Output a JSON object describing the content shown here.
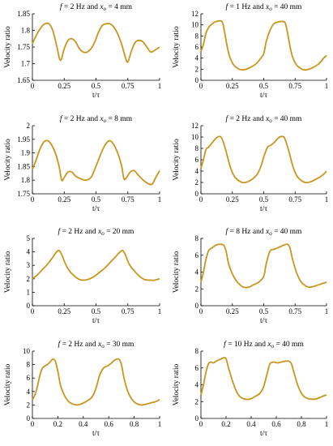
{
  "colors": {
    "line": "#C8961E",
    "axis": "#000000",
    "background": "#ffffff"
  },
  "chart_data": [
    {
      "type": "line",
      "title_parts": {
        "f_value": "2 Hz",
        "x_value": "4 mm"
      },
      "xlabel": "t/τ",
      "ylabel": "Velocity ratio",
      "xlim": [
        0,
        1
      ],
      "ylim": [
        1.65,
        1.85
      ],
      "xticks": [
        "0",
        "0.25",
        "0.5",
        "0.75",
        "1"
      ],
      "yticks": [
        "1.65",
        "1.7",
        "1.75",
        "1.8",
        "1.85"
      ],
      "x": [
        0,
        0.03,
        0.07,
        0.1,
        0.13,
        0.16,
        0.19,
        0.22,
        0.25,
        0.28,
        0.31,
        0.34,
        0.37,
        0.4,
        0.43,
        0.46,
        0.49,
        0.52,
        0.55,
        0.58,
        0.61,
        0.64,
        0.67,
        0.7,
        0.73,
        0.75,
        0.78,
        0.81,
        0.84,
        0.87,
        0.9,
        0.93,
        0.96,
        1.0
      ],
      "y": [
        1.76,
        1.785,
        1.81,
        1.82,
        1.82,
        1.8,
        1.755,
        1.71,
        1.745,
        1.77,
        1.775,
        1.765,
        1.745,
        1.735,
        1.735,
        1.745,
        1.765,
        1.795,
        1.815,
        1.82,
        1.82,
        1.81,
        1.79,
        1.76,
        1.72,
        1.705,
        1.74,
        1.765,
        1.77,
        1.765,
        1.75,
        1.735,
        1.74,
        1.75
      ]
    },
    {
      "type": "line",
      "title_parts": {
        "f_value": "1 Hz",
        "x_value": "40 mm"
      },
      "xlabel": "t/τ",
      "ylabel": "Velocity ratio",
      "xlim": [
        0,
        1
      ],
      "ylim": [
        0,
        12
      ],
      "xticks": [
        "0",
        "0.25",
        "0.5",
        "0.75",
        "1"
      ],
      "yticks": [
        "0",
        "2",
        "4",
        "6",
        "8",
        "10",
        "12"
      ],
      "x": [
        0,
        0.02,
        0.04,
        0.06,
        0.08,
        0.11,
        0.14,
        0.17,
        0.19,
        0.21,
        0.23,
        0.26,
        0.29,
        0.32,
        0.36,
        0.4,
        0.44,
        0.47,
        0.5,
        0.52,
        0.55,
        0.58,
        0.61,
        0.64,
        0.67,
        0.69,
        0.71,
        0.73,
        0.76,
        0.79,
        0.82,
        0.86,
        0.9,
        0.94,
        0.97,
        1.0
      ],
      "y": [
        5.2,
        6.5,
        8.5,
        9.5,
        10,
        10.5,
        10.7,
        10.5,
        8.5,
        6,
        4.2,
        2.8,
        2.2,
        1.9,
        2.0,
        2.4,
        3.0,
        3.8,
        4.8,
        7.0,
        9.0,
        10.2,
        10.5,
        10.6,
        10.4,
        8.5,
        6,
        4.2,
        2.8,
        2.2,
        1.9,
        2.0,
        2.4,
        3.0,
        3.8,
        4.5
      ]
    },
    {
      "type": "line",
      "title_parts": {
        "f_value": "2 Hz",
        "x_value": "8 mm"
      },
      "xlabel": "t/τ",
      "ylabel": "Velocity ratio",
      "xlim": [
        0,
        1
      ],
      "ylim": [
        1.75,
        2.0
      ],
      "xticks": [
        "0",
        "0.25",
        "0.5",
        "0.75",
        "1"
      ],
      "yticks": [
        "1.75",
        "1.8",
        "1.85",
        "1.9",
        "1.95",
        "2"
      ],
      "x": [
        0,
        0.03,
        0.06,
        0.09,
        0.12,
        0.15,
        0.18,
        0.21,
        0.23,
        0.25,
        0.28,
        0.31,
        0.34,
        0.38,
        0.42,
        0.46,
        0.49,
        0.52,
        0.55,
        0.58,
        0.61,
        0.64,
        0.67,
        0.7,
        0.72,
        0.74,
        0.77,
        0.8,
        0.83,
        0.86,
        0.9,
        0.94,
        0.97,
        1.0
      ],
      "y": [
        1.84,
        1.875,
        1.915,
        1.94,
        1.945,
        1.93,
        1.9,
        1.85,
        1.8,
        1.81,
        1.83,
        1.83,
        1.815,
        1.805,
        1.8,
        1.81,
        1.84,
        1.875,
        1.91,
        1.935,
        1.945,
        1.93,
        1.9,
        1.855,
        1.805,
        1.81,
        1.83,
        1.835,
        1.82,
        1.805,
        1.79,
        1.785,
        1.81,
        1.835
      ]
    },
    {
      "type": "line",
      "title_parts": {
        "f_value": "2 Hz",
        "x_value": "40 mm"
      },
      "xlabel": "t/τ",
      "ylabel": "Velocity ratio",
      "xlim": [
        0,
        1
      ],
      "ylim": [
        0,
        12
      ],
      "xticks": [
        "0",
        "0.25",
        "0.5",
        "0.75",
        "1"
      ],
      "yticks": [
        "0",
        "2",
        "4",
        "6",
        "8",
        "10",
        "12"
      ],
      "x": [
        0,
        0.02,
        0.04,
        0.06,
        0.09,
        0.12,
        0.15,
        0.17,
        0.2,
        0.23,
        0.26,
        0.29,
        0.33,
        0.37,
        0.41,
        0.45,
        0.48,
        0.5,
        0.53,
        0.56,
        0.59,
        0.62,
        0.65,
        0.67,
        0.7,
        0.73,
        0.76,
        0.79,
        0.83,
        0.87,
        0.91,
        0.95,
        0.98,
        1.0
      ],
      "y": [
        4.5,
        6.0,
        7.8,
        8.2,
        9.0,
        9.8,
        10.1,
        9.6,
        7.5,
        5.0,
        3.3,
        2.5,
        2.0,
        2.1,
        2.6,
        3.5,
        5.0,
        6.5,
        8.2,
        8.6,
        9.2,
        9.9,
        10.1,
        9.6,
        7.5,
        5.0,
        3.3,
        2.5,
        2.0,
        2.1,
        2.5,
        3.0,
        3.5,
        4.0
      ]
    },
    {
      "type": "line",
      "title_parts": {
        "f_value": "2 Hz",
        "x_value": "20 mm"
      },
      "xlabel": "t/τ",
      "ylabel": "Velocity ratio",
      "xlim": [
        0,
        1
      ],
      "ylim": [
        0,
        5
      ],
      "xticks": [
        "0",
        "0.25",
        "0.5",
        "0.75",
        "1"
      ],
      "yticks": [
        "0",
        "1",
        "2",
        "3",
        "4",
        "5"
      ],
      "x": [
        0,
        0.04,
        0.08,
        0.12,
        0.16,
        0.19,
        0.21,
        0.23,
        0.26,
        0.29,
        0.33,
        0.37,
        0.41,
        0.45,
        0.49,
        0.53,
        0.57,
        0.61,
        0.65,
        0.69,
        0.71,
        0.73,
        0.76,
        0.8,
        0.84,
        0.88,
        0.92,
        0.96,
        1.0
      ],
      "y": [
        2.0,
        2.3,
        2.7,
        3.1,
        3.6,
        4.0,
        4.1,
        3.8,
        3.1,
        2.6,
        2.2,
        1.95,
        1.9,
        2.0,
        2.2,
        2.5,
        2.8,
        3.2,
        3.6,
        4.0,
        4.1,
        3.8,
        3.1,
        2.6,
        2.2,
        1.95,
        1.9,
        1.9,
        2.0
      ]
    },
    {
      "type": "line",
      "title_parts": {
        "f_value": "8 Hz",
        "x_value": "40 mm"
      },
      "xlabel": "t/τ",
      "ylabel": "Velocity ratio",
      "xlim": [
        0,
        1
      ],
      "ylim": [
        0,
        8
      ],
      "xticks": [
        "0",
        "0.25",
        "0.5",
        "0.75",
        "1"
      ],
      "yticks": [
        "0",
        "2",
        "4",
        "6",
        "8"
      ],
      "x": [
        0,
        0.02,
        0.04,
        0.06,
        0.08,
        0.1,
        0.12,
        0.15,
        0.18,
        0.2,
        0.22,
        0.25,
        0.28,
        0.31,
        0.34,
        0.38,
        0.42,
        0.46,
        0.5,
        0.52,
        0.55,
        0.58,
        0.6,
        0.63,
        0.66,
        0.69,
        0.71,
        0.73,
        0.76,
        0.79,
        0.82,
        0.86,
        0.9,
        0.94,
        0.98,
        1.0
      ],
      "y": [
        2.8,
        4.0,
        5.5,
        6.5,
        6.8,
        7.0,
        7.2,
        7.3,
        7.2,
        6.5,
        5.0,
        3.8,
        3.0,
        2.5,
        2.2,
        2.2,
        2.5,
        2.8,
        3.5,
        5.0,
        6.5,
        6.7,
        6.8,
        7.0,
        7.2,
        7.3,
        6.8,
        5.5,
        4.0,
        3.0,
        2.5,
        2.2,
        2.3,
        2.5,
        2.7,
        2.8
      ]
    },
    {
      "type": "line",
      "title_parts": {
        "f_value": "2 Hz",
        "x_value": "30 mm"
      },
      "xlabel": "t/τ",
      "ylabel": "Velocity ratio",
      "xlim": [
        0,
        1
      ],
      "ylim": [
        0,
        10
      ],
      "xticks": [
        "0",
        "0.2",
        "0.4",
        "0.6",
        "0.8",
        "1"
      ],
      "yticks": [
        "0",
        "2",
        "4",
        "6",
        "8",
        "10"
      ],
      "x": [
        0,
        0.02,
        0.04,
        0.06,
        0.08,
        0.1,
        0.13,
        0.16,
        0.18,
        0.2,
        0.22,
        0.25,
        0.28,
        0.31,
        0.35,
        0.39,
        0.43,
        0.47,
        0.5,
        0.53,
        0.56,
        0.59,
        0.62,
        0.65,
        0.68,
        0.7,
        0.72,
        0.75,
        0.78,
        0.81,
        0.85,
        0.89,
        0.93,
        0.97,
        1.0
      ],
      "y": [
        2.8,
        3.5,
        4.8,
        6.5,
        7.5,
        7.8,
        8.2,
        8.8,
        8.5,
        7.0,
        5.0,
        3.5,
        2.6,
        2.2,
        2.0,
        2.2,
        2.6,
        3.2,
        4.5,
        6.5,
        7.5,
        7.8,
        8.2,
        8.7,
        8.8,
        8.0,
        6.0,
        4.0,
        2.9,
        2.3,
        2.0,
        2.1,
        2.3,
        2.5,
        2.8
      ]
    },
    {
      "type": "line",
      "title_parts": {
        "f_value": "10 Hz",
        "x_value": "40 mm"
      },
      "xlabel": "t/τ",
      "ylabel": "Velocity ratio",
      "xlim": [
        0,
        1
      ],
      "ylim": [
        0,
        8
      ],
      "xticks": [
        "0",
        "0.2",
        "0.4",
        "0.6",
        "0.8",
        "1"
      ],
      "yticks": [
        "0",
        "2",
        "4",
        "6",
        "8"
      ],
      "x": [
        0,
        0.02,
        0.04,
        0.06,
        0.08,
        0.1,
        0.12,
        0.15,
        0.18,
        0.2,
        0.22,
        0.25,
        0.28,
        0.31,
        0.35,
        0.39,
        0.43,
        0.47,
        0.5,
        0.53,
        0.55,
        0.58,
        0.61,
        0.64,
        0.67,
        0.7,
        0.72,
        0.74,
        0.77,
        0.8,
        0.83,
        0.87,
        0.91,
        0.95,
        0.98,
        1.0
      ],
      "y": [
        2.8,
        4.0,
        5.5,
        6.5,
        6.7,
        6.6,
        6.8,
        7.0,
        7.2,
        7.1,
        6.0,
        4.5,
        3.3,
        2.6,
        2.3,
        2.3,
        2.6,
        3.0,
        3.8,
        5.5,
        6.5,
        6.7,
        6.6,
        6.7,
        6.8,
        6.8,
        6.5,
        5.5,
        4.0,
        3.0,
        2.5,
        2.3,
        2.3,
        2.5,
        2.7,
        2.8
      ]
    }
  ]
}
